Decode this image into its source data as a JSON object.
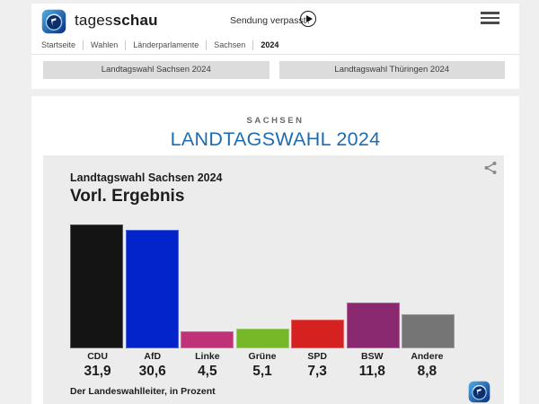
{
  "header": {
    "brand": {
      "prefix": "tages",
      "suffix": "schau"
    },
    "broadcast_link": "Sendung verpasst?",
    "breadcrumb": [
      "Startseite",
      "Wahlen",
      "Länderparlamente",
      "Sachsen",
      "2024"
    ],
    "tabs": [
      {
        "label": "Landtagswahl Sachsen 2024"
      },
      {
        "label": "Landtagswahl Thüringen 2024"
      }
    ]
  },
  "page": {
    "kicker": "SACHSEN",
    "title": "LANDTAGSWAHL 2024"
  },
  "chart_data": {
    "type": "bar",
    "title": "Landtagswahl Sachsen 2024",
    "subtitle": "Vorl. Ergebnis",
    "source": "Der Landeswahlleiter, in Prozent",
    "categories": [
      "CDU",
      "AfD",
      "Linke",
      "Grüne",
      "SPD",
      "BSW",
      "Andere"
    ],
    "values": [
      31.9,
      30.6,
      4.5,
      5.1,
      7.3,
      11.8,
      8.8
    ],
    "value_labels": [
      "31,9",
      "30,6",
      "4,5",
      "5,1",
      "7,3",
      "11,8",
      "8,8"
    ],
    "colors": [
      "#141414",
      "#0323cb",
      "#bf3278",
      "#77b829",
      "#d52221",
      "#8a2970",
      "#757575"
    ],
    "ylim": [
      0,
      35
    ],
    "grid": false,
    "legend": "none"
  },
  "icons": {
    "brand": "tagesschau-globe-icon",
    "play": "play-circle-icon",
    "menu": "menu-icon",
    "share": "share-icon",
    "watermark": "tagesschau-globe-icon"
  },
  "colors": {
    "accent_blue": "#1e6cb0",
    "page_background": "#efefef",
    "chart_background": "#ececec"
  }
}
